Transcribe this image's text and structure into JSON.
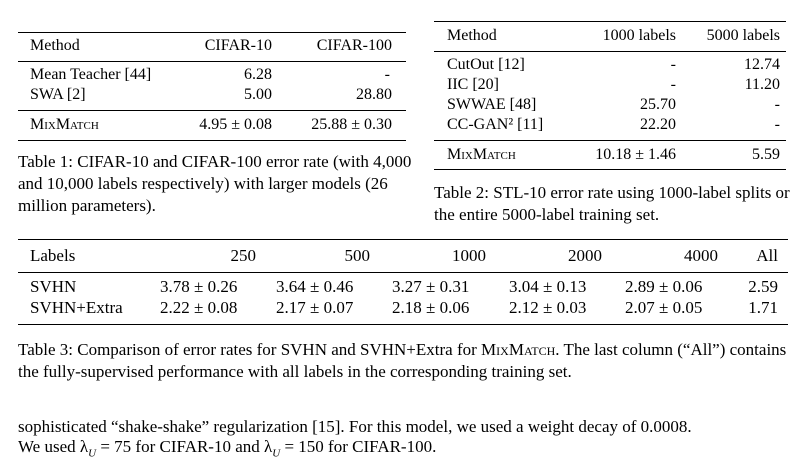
{
  "table1": {
    "headers": [
      "Method",
      "CIFAR-10",
      "CIFAR-100"
    ],
    "rows": [
      [
        "Mean Teacher [44]",
        "6.28",
        "-"
      ],
      [
        "SWA [2]",
        "5.00",
        "28.80"
      ]
    ],
    "mixmatch": {
      "method": "MixMatch",
      "c10": "4.95 ± 0.08",
      "c100": "25.88 ± 0.30"
    },
    "caption": "Table 1: CIFAR-10 and CIFAR-100 error rate (with 4,000 and 10,000 labels respectively) with larger models (26 million parameters)."
  },
  "table2": {
    "headers": [
      "Method",
      "1000 labels",
      "5000 labels"
    ],
    "rows": [
      [
        "CutOut [12]",
        "-",
        "12.74"
      ],
      [
        "IIC [20]",
        "-",
        "11.20"
      ],
      [
        "SWWAE [48]",
        "25.70",
        "-"
      ],
      [
        "CC-GAN² [11]",
        "22.20",
        "-"
      ]
    ],
    "mixmatch": {
      "method": "MixMatch",
      "l1000": "10.18 ± 1.46",
      "l5000": "5.59"
    },
    "caption": "Table 2: STL-10 error rate using 1000-label splits or the entire 5000-label training set."
  },
  "table3": {
    "headers": [
      "Labels",
      "250",
      "500",
      "1000",
      "2000",
      "4000",
      "All"
    ],
    "rows": [
      [
        "SVHN",
        "3.78 ± 0.26",
        "3.64 ± 0.46",
        "3.27 ± 0.31",
        "3.04 ± 0.13",
        "2.89 ± 0.06",
        "2.59"
      ],
      [
        "SVHN+Extra",
        "2.22 ± 0.08",
        "2.17 ± 0.07",
        "2.18 ± 0.06",
        "2.12 ± 0.03",
        "2.07 ± 0.05",
        "1.71"
      ]
    ],
    "caption_pre": "Table 3: Comparison of error rates for SVHN and SVHN+Extra for ",
    "caption_mix": "MixMatch",
    "caption_post": ". The last column (“All”) contains the fully-supervised performance with all labels in the corresponding training set."
  },
  "body": {
    "line1": "sophisticated “shake-shake” regularization [15]. For this model, we used a weight decay of 0.0008.",
    "line2_a": "We used λ",
    "line2_b": " = 75 for CIFAR-10 and λ",
    "line2_c": " = 150 for CIFAR-100.",
    "sub": "U"
  }
}
